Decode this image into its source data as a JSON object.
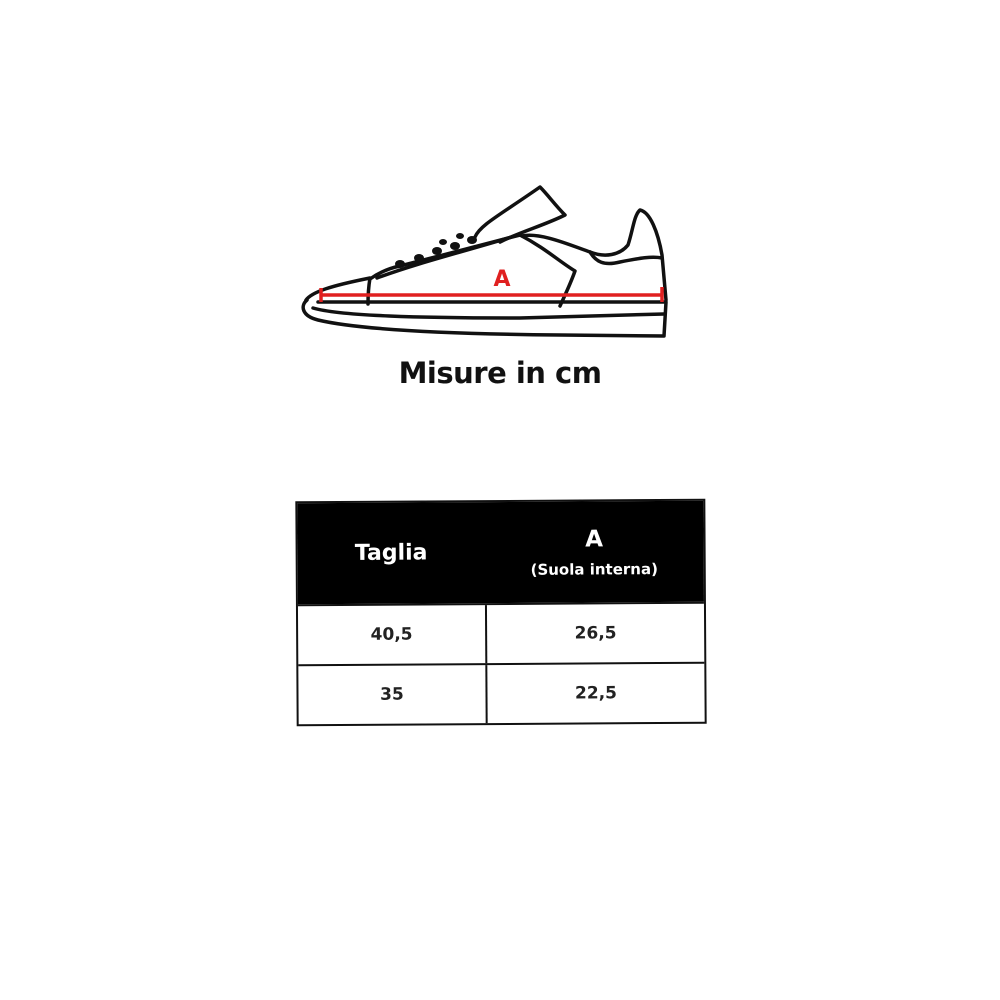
{
  "illustration": {
    "measure_label": "A",
    "measure_color": "#e02020"
  },
  "caption": "Misure in cm",
  "table": {
    "headers": {
      "size": "Taglia",
      "measure": "A",
      "measure_note": "(Suola interna)"
    },
    "rows": [
      {
        "size": "40,5",
        "length": "26,5"
      },
      {
        "size": "35",
        "length": "22,5"
      }
    ]
  }
}
